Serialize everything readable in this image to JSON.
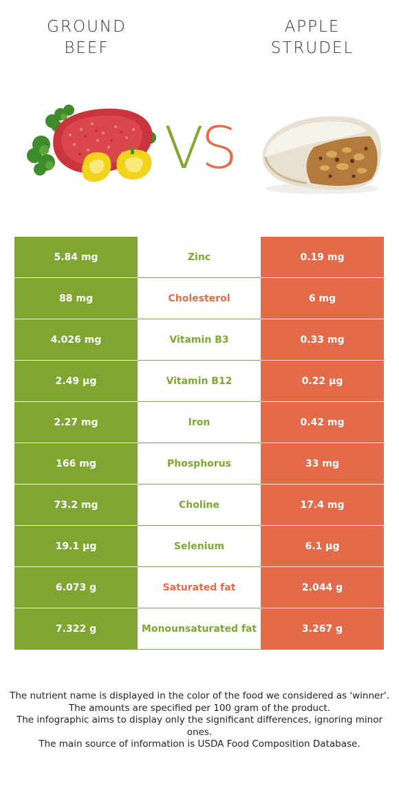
{
  "header": {
    "left_food": [
      "GROUND",
      "BEEF"
    ],
    "right_food": [
      "APPLE",
      "STRUDEL"
    ],
    "vs_v": "V",
    "vs_s": "S"
  },
  "colors": {
    "left_food": "#7ea631",
    "right_food": "#e36b49"
  },
  "rows": [
    {
      "left": "5.84 mg",
      "nutrient": "Zinc",
      "right": "0.19 mg",
      "winner": "left"
    },
    {
      "left": "88 mg",
      "nutrient": "Cholesterol",
      "right": "6 mg",
      "winner": "right"
    },
    {
      "left": "4.026 mg",
      "nutrient": "Vitamin B3",
      "right": "0.33 mg",
      "winner": "left"
    },
    {
      "left": "2.49 µg",
      "nutrient": "Vitamin B12",
      "right": "0.22 µg",
      "winner": "left"
    },
    {
      "left": "2.27 mg",
      "nutrient": "Iron",
      "right": "0.42 mg",
      "winner": "left"
    },
    {
      "left": "166 mg",
      "nutrient": "Phosphorus",
      "right": "33 mg",
      "winner": "left"
    },
    {
      "left": "73.2 mg",
      "nutrient": "Choline",
      "right": "17.4 mg",
      "winner": "left"
    },
    {
      "left": "19.1 µg",
      "nutrient": "Selenium",
      "right": "6.1 µg",
      "winner": "left"
    },
    {
      "left": "6.073 g",
      "nutrient": "Saturated fat",
      "right": "2.044 g",
      "winner": "right"
    },
    {
      "left": "7.322 g",
      "nutrient": "Monounsaturated fat",
      "right": "3.267 g",
      "winner": "left"
    }
  ],
  "footer": {
    "line1": "The nutrient name is displayed in the color of the food we considered as 'winner'.",
    "line2": "The amounts are specified per 100 gram of the product.",
    "line3": "The infographic aims to display only the significant differences, ignoring minor ones.",
    "line4": "The main source of information is USDA Food Composition Database."
  }
}
